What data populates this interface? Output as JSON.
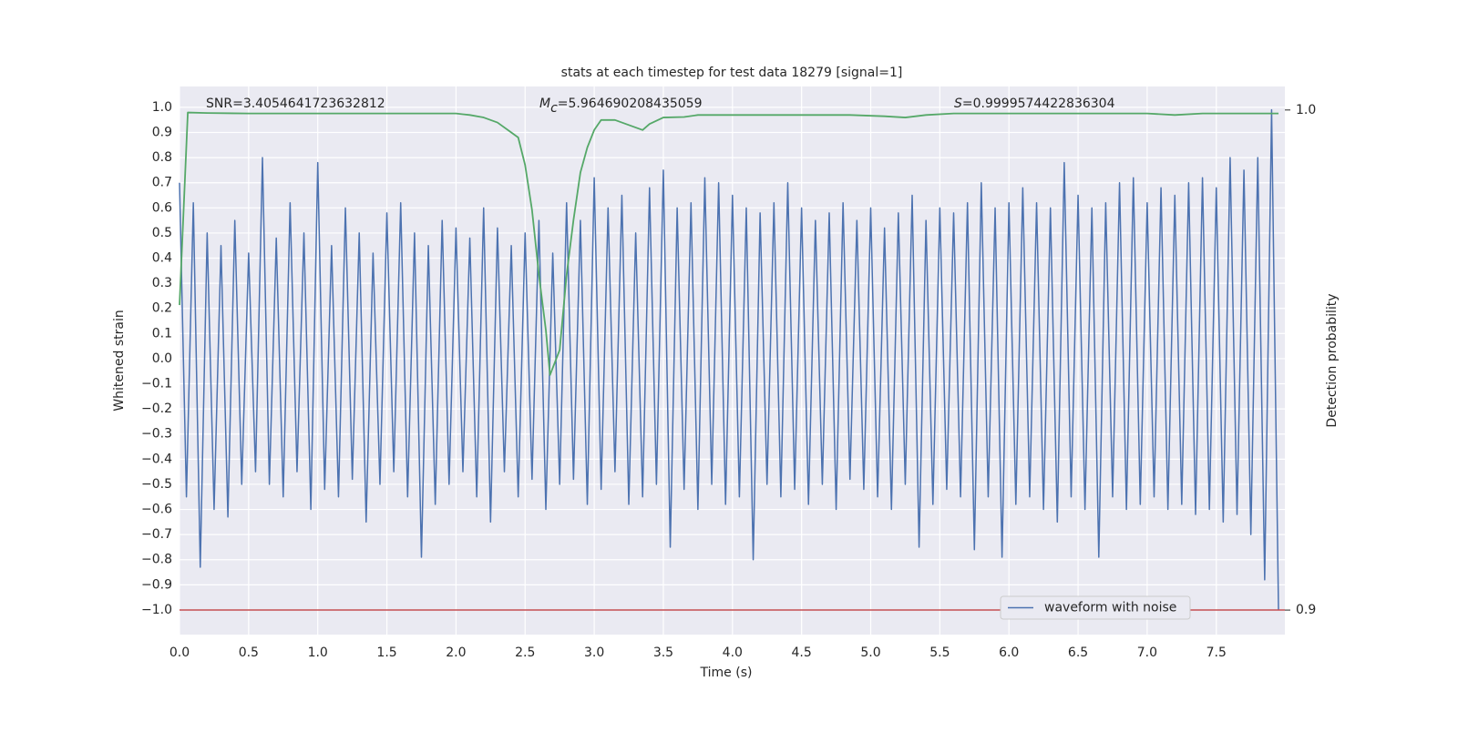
{
  "chart_data": {
    "type": "line",
    "title": "stats at each timestep for test data 18279 [signal=1]",
    "xlabel": "Time (s)",
    "ylabel": "Whitened strain",
    "y2label": "Detection probability",
    "annotations": [
      {
        "text": "SNR=3.4054641723632812"
      },
      {
        "symbol": "M",
        "subscript": "c",
        "text": "=5.964690208435059"
      },
      {
        "symbol": "S",
        "text": "=0.9999574422836304"
      }
    ],
    "xlim": [
      0,
      7.996
    ],
    "ylim": [
      -1.098,
      1.083
    ],
    "y2lim": [
      0.8951,
      1.0047
    ],
    "grid": true,
    "background": "#eaeaf2",
    "legend": "lower right",
    "xticks": [
      {
        "value": 0,
        "label": "0.0"
      },
      0.5,
      {
        "value": 1,
        "label": "1.0"
      },
      1.5,
      {
        "value": 2,
        "label": "2.0"
      },
      2.5,
      {
        "value": 3,
        "label": "3.0"
      },
      3.5,
      {
        "value": 4,
        "label": "4.0"
      },
      4.5,
      {
        "value": 5,
        "label": "5.0"
      },
      5.5,
      {
        "value": 6,
        "label": "6.0"
      },
      6.5,
      {
        "value": 7,
        "label": "7.0"
      },
      7.5
    ],
    "yticks": [
      {
        "value": -1,
        "label": "−1.0"
      },
      {
        "value": -0.9,
        "label": "−0.9"
      },
      {
        "value": -0.8,
        "label": "−0.8"
      },
      {
        "value": -0.7,
        "label": "−0.7"
      },
      {
        "value": -0.6,
        "label": "−0.6"
      },
      {
        "value": -0.5,
        "label": "−0.5"
      },
      {
        "value": -0.4,
        "label": "−0.4"
      },
      {
        "value": -0.3,
        "label": "−0.3"
      },
      {
        "value": -0.2,
        "label": "−0.2"
      },
      {
        "value": -0.1,
        "label": "−0.1"
      },
      {
        "value": 0,
        "label": "0.0"
      },
      0.1,
      0.2,
      0.3,
      0.4,
      0.5,
      0.6,
      0.7,
      0.8,
      0.9,
      {
        "value": 1,
        "label": "1.0"
      }
    ],
    "y2ticks": [
      0.9,
      {
        "value": 1,
        "label": "1.0"
      }
    ],
    "hlines": [
      {
        "value": -1.0,
        "color": "#c44e52"
      }
    ],
    "series": [
      {
        "name": "waveform with noise",
        "color": "#4c72b0",
        "x": [
          0,
          0.05,
          0.1,
          0.15,
          0.2,
          0.25,
          0.3,
          0.35,
          0.4,
          0.45,
          0.5,
          0.55,
          0.6,
          0.65,
          0.7,
          0.75,
          0.8,
          0.85,
          0.9,
          0.95,
          1,
          1.05,
          1.1,
          1.15,
          1.2,
          1.25,
          1.3,
          1.35,
          1.4,
          1.45,
          1.5,
          1.55,
          1.6,
          1.65,
          1.7,
          1.75,
          1.8,
          1.85,
          1.9,
          1.95,
          2,
          2.05,
          2.1,
          2.15,
          2.2,
          2.25,
          2.3,
          2.35,
          2.4,
          2.45,
          2.5,
          2.55,
          2.6,
          2.65,
          2.7,
          2.75,
          2.8,
          2.85,
          2.9,
          2.95,
          3,
          3.05,
          3.1,
          3.15,
          3.2,
          3.25,
          3.3,
          3.35,
          3.4,
          3.45,
          3.5,
          3.55,
          3.6,
          3.65,
          3.7,
          3.75,
          3.8,
          3.85,
          3.9,
          3.95,
          4,
          4.05,
          4.1,
          4.15,
          4.2,
          4.25,
          4.3,
          4.35,
          4.4,
          4.45,
          4.5,
          4.55,
          4.6,
          4.65,
          4.7,
          4.75,
          4.8,
          4.85,
          4.9,
          4.95,
          5,
          5.05,
          5.1,
          5.15,
          5.2,
          5.25,
          5.3,
          5.35,
          5.4,
          5.45,
          5.5,
          5.55,
          5.6,
          5.65,
          5.7,
          5.75,
          5.8,
          5.85,
          5.9,
          5.95,
          6,
          6.05,
          6.1,
          6.15,
          6.2,
          6.25,
          6.3,
          6.35,
          6.4,
          6.45,
          6.5,
          6.55,
          6.6,
          6.65,
          6.7,
          6.75,
          6.8,
          6.85,
          6.9,
          6.95,
          7,
          7.05,
          7.1,
          7.15,
          7.2,
          7.25,
          7.3,
          7.35,
          7.4,
          7.45,
          7.5,
          7.55,
          7.6,
          7.65,
          7.7,
          7.75,
          7.8,
          7.85,
          7.9,
          7.95
        ],
        "values": [
          0.7,
          -0.55,
          0.62,
          -0.83,
          0.5,
          -0.6,
          0.45,
          -0.63,
          0.55,
          -0.5,
          0.42,
          -0.45,
          0.8,
          -0.5,
          0.48,
          -0.55,
          0.62,
          -0.45,
          0.5,
          -0.6,
          0.78,
          -0.52,
          0.45,
          -0.55,
          0.6,
          -0.48,
          0.5,
          -0.65,
          0.42,
          -0.5,
          0.58,
          -0.45,
          0.62,
          -0.55,
          0.5,
          -0.79,
          0.45,
          -0.58,
          0.55,
          -0.5,
          0.52,
          -0.45,
          0.48,
          -0.55,
          0.6,
          -0.65,
          0.52,
          -0.45,
          0.45,
          -0.55,
          0.5,
          -0.48,
          0.55,
          -0.6,
          0.42,
          -0.5,
          0.62,
          -0.48,
          0.55,
          -0.58,
          0.72,
          -0.52,
          0.6,
          -0.45,
          0.65,
          -0.58,
          0.5,
          -0.55,
          0.68,
          -0.5,
          0.75,
          -0.75,
          0.6,
          -0.52,
          0.62,
          -0.6,
          0.72,
          -0.5,
          0.7,
          -0.58,
          0.65,
          -0.55,
          0.6,
          -0.8,
          0.58,
          -0.5,
          0.62,
          -0.55,
          0.7,
          -0.52,
          0.6,
          -0.58,
          0.55,
          -0.5,
          0.58,
          -0.6,
          0.62,
          -0.48,
          0.55,
          -0.52,
          0.6,
          -0.55,
          0.52,
          -0.6,
          0.58,
          -0.5,
          0.65,
          -0.75,
          0.55,
          -0.58,
          0.6,
          -0.52,
          0.58,
          -0.55,
          0.62,
          -0.76,
          0.7,
          -0.55,
          0.6,
          -0.79,
          0.62,
          -0.58,
          0.68,
          -0.55,
          0.62,
          -0.6,
          0.6,
          -0.65,
          0.78,
          -0.55,
          0.65,
          -0.6,
          0.6,
          -0.79,
          0.62,
          -0.55,
          0.7,
          -0.6,
          0.72,
          -0.58,
          0.62,
          -0.55,
          0.68,
          -0.6,
          0.65,
          -0.58,
          0.7,
          -0.62,
          0.72,
          -0.6,
          0.68,
          -0.65,
          0.8,
          -0.62,
          0.75,
          -0.7,
          0.8,
          -0.88,
          0.99,
          -1.0
        ]
      },
      {
        "color": "#55a868",
        "axis": "y2",
        "x": [
          0,
          0.06,
          0.2,
          0.5,
          1,
          1.5,
          2,
          2.1,
          2.2,
          2.3,
          2.4,
          2.45,
          2.5,
          2.55,
          2.6,
          2.65,
          2.68,
          2.75,
          2.8,
          2.85,
          2.9,
          2.95,
          3,
          3.05,
          3.1,
          3.15,
          3.25,
          3.35,
          3.4,
          3.5,
          3.65,
          3.75,
          4,
          4.5,
          4.85,
          5.1,
          5.25,
          5.4,
          5.6,
          6,
          7,
          7.2,
          7.4,
          7.95
        ],
        "values": [
          0.961,
          0.9995,
          0.9994,
          0.9993,
          0.9993,
          0.9993,
          0.9993,
          0.999,
          0.9985,
          0.9975,
          0.9955,
          0.9945,
          0.989,
          0.98,
          0.967,
          0.956,
          0.947,
          0.952,
          0.967,
          0.978,
          0.9875,
          0.9925,
          0.996,
          0.998,
          0.998,
          0.998,
          0.997,
          0.996,
          0.9972,
          0.9985,
          0.9986,
          0.999,
          0.999,
          0.999,
          0.999,
          0.99875,
          0.9985,
          0.999,
          0.9993,
          0.9993,
          0.9993,
          0.999,
          0.9993,
          0.9993
        ]
      }
    ]
  }
}
